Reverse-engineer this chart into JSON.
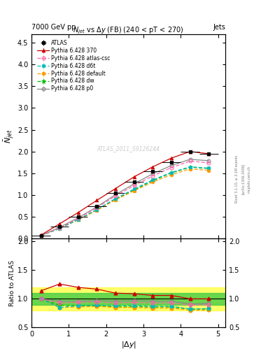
{
  "watermark": "ATLAS_2011_S9126244",
  "xlabel": "$|\\Delta y|$",
  "ylabel_main": "$\\bar{N}_{jet}$",
  "ylabel_ratio": "Ratio to ATLAS",
  "x": [
    0.25,
    0.75,
    1.25,
    1.75,
    2.25,
    2.75,
    3.25,
    3.75,
    4.25,
    4.75
  ],
  "x_err": [
    0.25,
    0.25,
    0.25,
    0.25,
    0.25,
    0.25,
    0.25,
    0.25,
    0.25,
    0.25
  ],
  "atlas_y": [
    0.07,
    0.27,
    0.5,
    0.75,
    1.05,
    1.3,
    1.55,
    1.75,
    2.0,
    1.95
  ],
  "atlas_yerr": [
    0.005,
    0.008,
    0.008,
    0.01,
    0.01,
    0.012,
    0.012,
    0.015,
    0.015,
    0.018
  ],
  "py370_y": [
    0.08,
    0.34,
    0.6,
    0.88,
    1.15,
    1.42,
    1.65,
    1.85,
    2.0,
    1.95
  ],
  "py370_yerr": [
    0.003,
    0.004,
    0.005,
    0.005,
    0.006,
    0.006,
    0.007,
    0.007,
    0.008,
    0.009
  ],
  "py370_color": "#cc0000",
  "py370_label": "Pythia 6.428 370",
  "pyatlas_y": [
    0.07,
    0.25,
    0.47,
    0.71,
    0.98,
    1.22,
    1.44,
    1.63,
    1.78,
    1.74
  ],
  "pyatlas_yerr": [
    0.003,
    0.004,
    0.005,
    0.005,
    0.006,
    0.006,
    0.007,
    0.007,
    0.008,
    0.009
  ],
  "pyatlas_color": "#ff66aa",
  "pyatlas_label": "Pythia 6.428 atlas-csc",
  "pyd6t_y": [
    0.07,
    0.23,
    0.44,
    0.67,
    0.92,
    1.14,
    1.35,
    1.52,
    1.65,
    1.62
  ],
  "pyd6t_yerr": [
    0.003,
    0.004,
    0.005,
    0.005,
    0.006,
    0.006,
    0.007,
    0.007,
    0.008,
    0.009
  ],
  "pyd6t_color": "#00bbbb",
  "pyd6t_label": "Pythia 6.428 d6t",
  "pydef_y": [
    0.07,
    0.23,
    0.43,
    0.65,
    0.89,
    1.1,
    1.3,
    1.47,
    1.6,
    1.57
  ],
  "pydef_yerr": [
    0.003,
    0.004,
    0.005,
    0.005,
    0.006,
    0.006,
    0.007,
    0.007,
    0.008,
    0.009
  ],
  "pydef_color": "#ff9900",
  "pydef_label": "Pythia 6.428 default",
  "pydw_y": [
    0.07,
    0.24,
    0.44,
    0.66,
    0.9,
    1.12,
    1.33,
    1.51,
    1.64,
    1.61
  ],
  "pydw_yerr": [
    0.003,
    0.004,
    0.005,
    0.005,
    0.006,
    0.006,
    0.007,
    0.007,
    0.008,
    0.009
  ],
  "pydw_color": "#00bb00",
  "pydw_label": "Pythia 6.428 dw",
  "pyp0_y": [
    0.07,
    0.26,
    0.48,
    0.73,
    1.01,
    1.26,
    1.49,
    1.68,
    1.82,
    1.79
  ],
  "pyp0_yerr": [
    0.003,
    0.004,
    0.005,
    0.005,
    0.006,
    0.006,
    0.007,
    0.007,
    0.008,
    0.009
  ],
  "pyp0_color": "#888888",
  "pyp0_label": "Pythia 6.428 p0",
  "ratio_370": [
    1.14,
    1.26,
    1.2,
    1.17,
    1.1,
    1.09,
    1.06,
    1.06,
    1.0,
    1.0
  ],
  "ratio_atlas": [
    1.0,
    0.93,
    0.94,
    0.95,
    0.93,
    0.94,
    0.93,
    0.93,
    0.89,
    0.895
  ],
  "ratio_d6t": [
    1.0,
    0.85,
    0.88,
    0.89,
    0.88,
    0.88,
    0.87,
    0.87,
    0.825,
    0.83
  ],
  "ratio_default": [
    1.0,
    0.85,
    0.86,
    0.87,
    0.85,
    0.85,
    0.84,
    0.84,
    0.8,
    0.805
  ],
  "ratio_dw": [
    1.0,
    0.89,
    0.88,
    0.88,
    0.86,
    0.86,
    0.86,
    0.86,
    0.82,
    0.825
  ],
  "ratio_p0": [
    1.0,
    0.96,
    0.96,
    0.97,
    0.96,
    0.97,
    0.96,
    0.96,
    0.91,
    0.92
  ],
  "ratio_err": 0.015,
  "ylim_main": [
    0.0,
    4.7
  ],
  "ylim_ratio": [
    0.5,
    2.05
  ],
  "xlim": [
    0.0,
    5.2
  ]
}
